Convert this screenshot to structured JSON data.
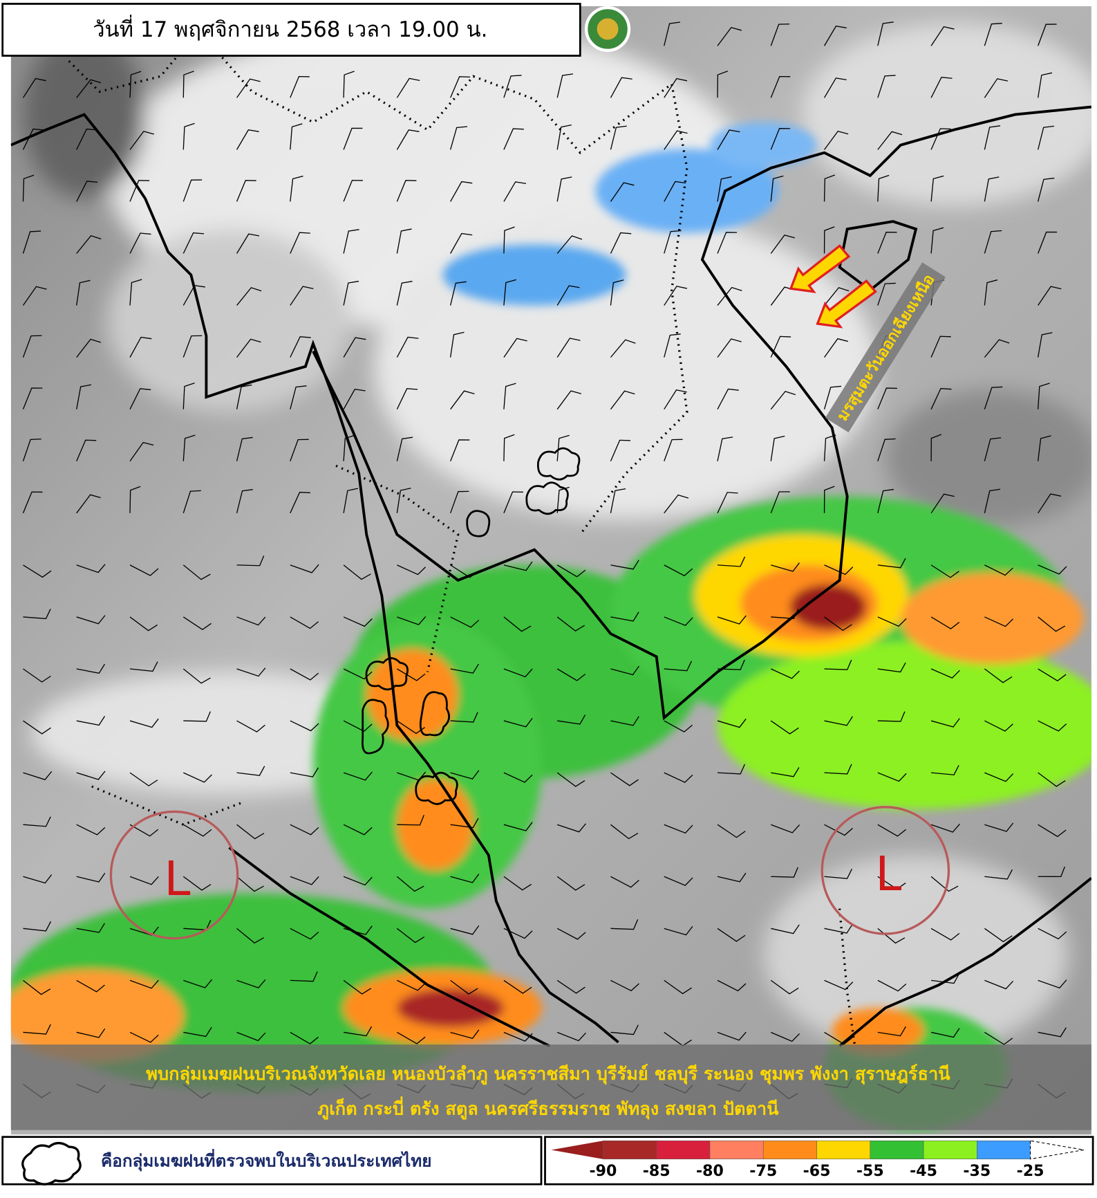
{
  "header": {
    "title": "วันที่ 17 พฤศจิกายน 2568 เวลา 19.00 น."
  },
  "annotations": {
    "monsoon": "มรสุมตะวันออกเฉียงเหนือ",
    "lows": [
      "L",
      "L"
    ]
  },
  "caption": {
    "lines": [
      "พบกลุ่มเมฆฝนบริเวณจังหวัดเลย หนองบัวลำภู นครราชสีมา บุรีรัมย์ ชลบุรี ระนอง ชุมพร พังงา สุราษฎร์ธานี",
      "ภูเก็ต กระบี่ ตรัง สตูล นครศรีธรรมราช พัทลุง สงขลา ปัตตานี"
    ]
  },
  "legend": {
    "cloud_label": "คือกลุ่มเมฆฝนที่ตรวจพบในบริเวณประเทศไทย"
  },
  "color_scale": {
    "labels": [
      "-90",
      "-85",
      "-80",
      "-75",
      "-65",
      "-55",
      "-45",
      "-35",
      "-25"
    ],
    "colors": [
      "#a82828",
      "#d8203c",
      "#ff7f60",
      "#ff8c1a",
      "#ffd700",
      "#33c033",
      "#8cf020",
      "#3c9cff"
    ],
    "low_color": "#9a1e1e",
    "high_color": "#ffffff"
  }
}
